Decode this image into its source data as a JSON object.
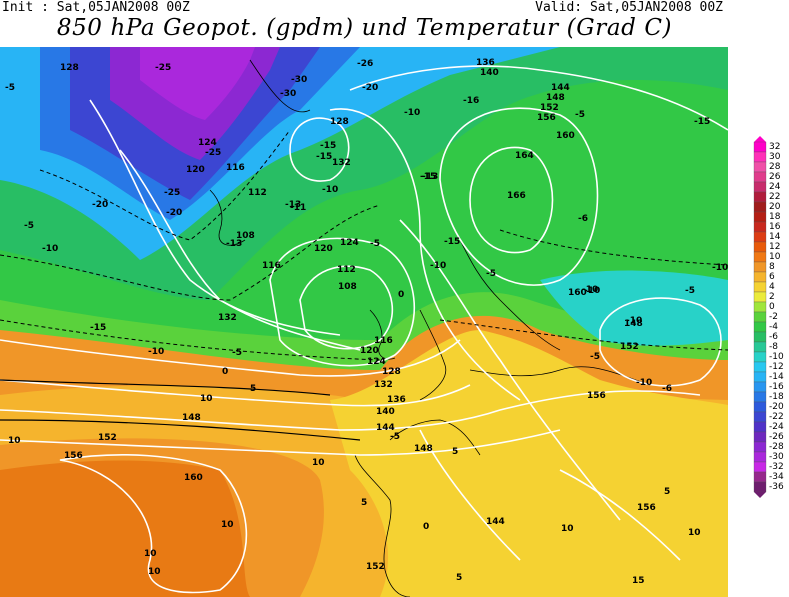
{
  "header": {
    "init": "Init : Sat,05JAN2008 00Z",
    "valid": "Valid: Sat,05JAN2008 00Z",
    "title": "850 hPa Geopot. (gpdm) und Temperatur (Grad C)"
  },
  "colorbar": {
    "labels": [
      "32",
      "30",
      "28",
      "26",
      "24",
      "22",
      "20",
      "18",
      "16",
      "14",
      "12",
      "10",
      "8",
      "6",
      "4",
      "2",
      "0",
      "-2",
      "-4",
      "-6",
      "-8",
      "-10",
      "-12",
      "-14",
      "-16",
      "-18",
      "-20",
      "-22",
      "-24",
      "-26",
      "-28",
      "-30",
      "-32",
      "-34",
      "-36"
    ],
    "colors": [
      "#ff00c8",
      "#ff30b8",
      "#f050a8",
      "#e03c8c",
      "#c82c6c",
      "#b01c3c",
      "#a01c1c",
      "#b41e14",
      "#c8281e",
      "#dc3c14",
      "#e85a0a",
      "#f07814",
      "#f09628",
      "#f5b42d",
      "#f5d232",
      "#ebeb3c",
      "#a0e63c",
      "#5ad23c",
      "#32c846",
      "#28be64",
      "#28c896",
      "#28d2c8",
      "#28c8f0",
      "#28b4f5",
      "#2896f0",
      "#2878e6",
      "#2d5adc",
      "#3c46d2",
      "#5032c8",
      "#6e28be",
      "#8c28d2",
      "#aa28dc",
      "#c828e6",
      "#96288c",
      "#6e1e6e"
    ]
  },
  "map": {
    "colors": {
      "orange": "#f09628",
      "deep_orange": "#e87a14",
      "yellow_orange": "#f5b42d",
      "yellow": "#f5d232",
      "light_green": "#5ad23c",
      "green": "#32c846",
      "teal": "#28be64",
      "cyan": "#28d2c8",
      "sky": "#28b4f5",
      "blue": "#2878e6",
      "indigo": "#3c46d2",
      "violet": "#8c28d2",
      "magenta": "#aa28dc"
    },
    "geopotential_labels": [
      "128",
      "124",
      "120",
      "116",
      "112",
      "108",
      "116",
      "120",
      "124",
      "128",
      "132",
      "136",
      "140",
      "144",
      "148",
      "152",
      "156",
      "160",
      "164",
      "166",
      "160",
      "148",
      "152",
      "156",
      "160",
      "156",
      "152",
      "144",
      "148",
      "128",
      "132",
      "136",
      "140",
      "144",
      "148",
      "152",
      "156",
      "116",
      "120",
      "124",
      "132",
      "108",
      "112"
    ],
    "temperature_labels": [
      "-5",
      "-25",
      "-30",
      "-25",
      "-20",
      "-25",
      "-20",
      "-5",
      "-10",
      "-15",
      "-10",
      "-5",
      "-26",
      "-30",
      "-15",
      "-15",
      "-10",
      "-13",
      "-10",
      "-20",
      "-15",
      "-16",
      "-5",
      "-15",
      "-10",
      "-10",
      "-5",
      "-6",
      "-10",
      "-5",
      "-10",
      "-15",
      "0",
      "5",
      "10",
      "10",
      "10",
      "10",
      "5",
      "5",
      "10",
      "0",
      "-5",
      "-6",
      "-10",
      "5",
      "10",
      "15",
      "10",
      "10",
      "5",
      "0",
      "-5",
      "-13",
      "-11",
      "-13",
      "-10",
      "-5"
    ]
  }
}
